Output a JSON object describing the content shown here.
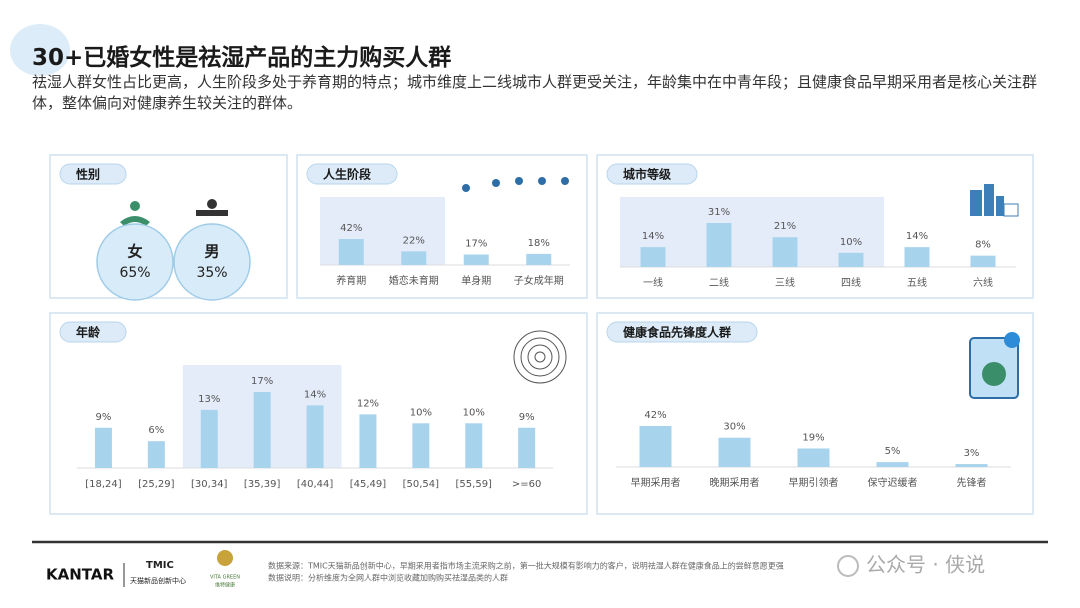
{
  "title": "30+已婚女性是祛湿产品的主力购买人群",
  "subtitle": "祛湿人群女性占比更高，人生阶段多处于养育期的特点；城市维度上二线城市人群更受关注，年龄集中在中青年段；且健康食品早期采用者是核心关注群体，整体偏向对健康养生较关注的群体。",
  "chart_data": [
    {
      "type": "circles",
      "title": "性别",
      "categories": [
        "女",
        "男"
      ],
      "values": [
        65,
        35
      ],
      "value_labels": [
        "65%",
        "35%"
      ],
      "color": "#d8ebf8"
    },
    {
      "type": "bar",
      "title": "人生阶段",
      "categories": [
        "养育期",
        "婚恋未育期",
        "单身期",
        "子女成年期"
      ],
      "values": [
        42,
        22,
        17,
        18
      ],
      "value_labels": [
        "42%",
        "22%",
        "17%",
        "18%"
      ],
      "highlighted": [
        true,
        true,
        false,
        false
      ],
      "color": "#a8d3ed",
      "highlight_color": "#e4ecfa"
    },
    {
      "type": "bar",
      "title": "城市等级",
      "categories": [
        "一线",
        "二线",
        "三线",
        "四线",
        "五线",
        "六线"
      ],
      "values": [
        14,
        31,
        21,
        10,
        14,
        8
      ],
      "value_labels": [
        "14%",
        "31%",
        "21%",
        "10%",
        "14%",
        "8%"
      ],
      "highlighted": [
        true,
        true,
        true,
        true,
        false,
        false
      ],
      "color": "#a8d3ed",
      "highlight_color": "#e4ecfa"
    },
    {
      "type": "bar",
      "title": "年龄",
      "categories": [
        "[18,24]",
        "[25,29]",
        "[30,34]",
        "[35,39]",
        "[40,44]",
        "[45,49]",
        "[50,54]",
        "[55,59]",
        ">=60"
      ],
      "values": [
        9,
        6,
        13,
        17,
        14,
        12,
        10,
        10,
        9
      ],
      "value_labels": [
        "9%",
        "6%",
        "13%",
        "17%",
        "14%",
        "12%",
        "10%",
        "10%",
        "9%"
      ],
      "highlighted": [
        false,
        false,
        true,
        true,
        true,
        false,
        false,
        false,
        false
      ],
      "color": "#a8d3ed",
      "highlight_color": "#e4ecfa"
    },
    {
      "type": "bar",
      "title": "健康食品先锋度人群",
      "categories": [
        "早期采用者",
        "晚期采用者",
        "早期引领者",
        "保守迟缓者",
        "先锋者"
      ],
      "values": [
        42,
        30,
        19,
        5,
        3
      ],
      "value_labels": [
        "42%",
        "30%",
        "19%",
        "5%",
        "3%"
      ],
      "highlighted": [
        false,
        false,
        false,
        false,
        false
      ],
      "color": "#a8d3ed",
      "highlight_color": "#e4ecfa"
    }
  ],
  "footer": {
    "logos": [
      "KANTAR",
      "TMIC",
      "天猫新品创新中心",
      "VITA GREEN",
      "维特健康"
    ],
    "source": "数据来源：TMIC天猫新品创新中心，早期采用者指市场主流采购之前，第一批大规模有影响力的客户，说明祛湿人群在健康食品上的尝鲜意愿更强",
    "note": "数据说明：分析维度为全网人群中浏览收藏加购购买祛湿品类的人群",
    "watermark": "公众号 · 侠说"
  }
}
